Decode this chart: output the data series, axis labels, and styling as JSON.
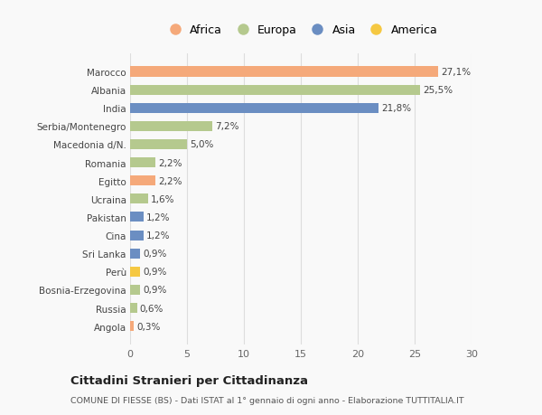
{
  "categories": [
    "Angola",
    "Russia",
    "Bosnia-Erzegovina",
    "Perù",
    "Sri Lanka",
    "Cina",
    "Pakistan",
    "Ucraina",
    "Egitto",
    "Romania",
    "Macedonia d/N.",
    "Serbia/Montenegro",
    "India",
    "Albania",
    "Marocco"
  ],
  "values": [
    0.3,
    0.6,
    0.9,
    0.9,
    0.9,
    1.2,
    1.2,
    1.6,
    2.2,
    2.2,
    5.0,
    7.2,
    21.8,
    25.5,
    27.1
  ],
  "labels": [
    "0,3%",
    "0,6%",
    "0,9%",
    "0,9%",
    "0,9%",
    "1,2%",
    "1,2%",
    "1,6%",
    "2,2%",
    "2,2%",
    "5,0%",
    "7,2%",
    "21,8%",
    "25,5%",
    "27,1%"
  ],
  "colors": [
    "#f5a97a",
    "#b5c98e",
    "#b5c98e",
    "#f5c842",
    "#6b8ec2",
    "#6b8ec2",
    "#6b8ec2",
    "#b5c98e",
    "#f5a97a",
    "#b5c98e",
    "#b5c98e",
    "#b5c98e",
    "#6b8ec2",
    "#b5c98e",
    "#f5a97a"
  ],
  "legend": [
    {
      "label": "Africa",
      "color": "#f5a97a"
    },
    {
      "label": "Europa",
      "color": "#b5c98e"
    },
    {
      "label": "Asia",
      "color": "#6b8ec2"
    },
    {
      "label": "America",
      "color": "#f5c842"
    }
  ],
  "xlim": [
    0,
    30
  ],
  "xticks": [
    0,
    5,
    10,
    15,
    20,
    25,
    30
  ],
  "title": "Cittadini Stranieri per Cittadinanza",
  "subtitle": "COMUNE DI FIESSE (BS) - Dati ISTAT al 1° gennaio di ogni anno - Elaborazione TUTTITALIA.IT",
  "bg_color": "#f9f9f9",
  "bar_height": 0.55,
  "grid_color": "#dddddd"
}
